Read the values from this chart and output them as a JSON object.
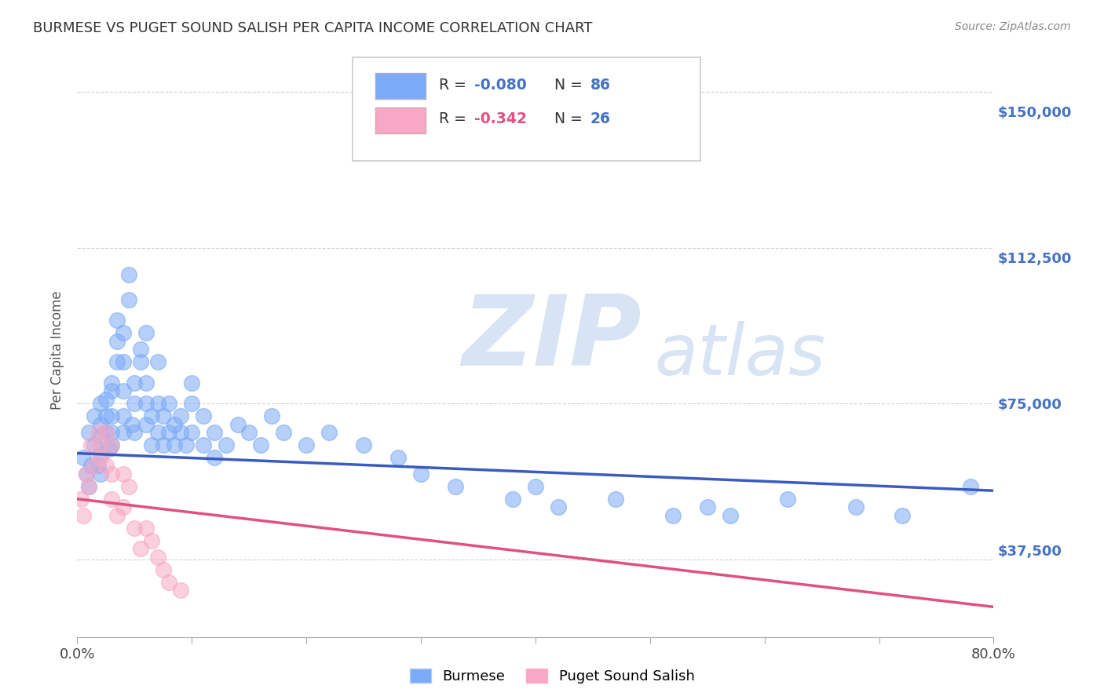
{
  "title": "BURMESE VS PUGET SOUND SALISH PER CAPITA INCOME CORRELATION CHART",
  "source": "Source: ZipAtlas.com",
  "ylabel": "Per Capita Income",
  "xlim": [
    0.0,
    0.8
  ],
  "ylim": [
    18750,
    157000
  ],
  "yticks": [
    37500,
    75000,
    112500,
    150000
  ],
  "ytick_labels": [
    "$37,500",
    "$75,000",
    "$112,500",
    "$150,000"
  ],
  "xticks": [
    0.0,
    0.1,
    0.2,
    0.3,
    0.4,
    0.5,
    0.6,
    0.7,
    0.8
  ],
  "background_color": "#ffffff",
  "grid_color": "#cccccc",
  "blue_color": "#7baaf7",
  "pink_color": "#f7a8c4",
  "blue_line_color": "#3a5bbf",
  "pink_line_color": "#e05080",
  "blue_label_color": "#4472c4",
  "pink_label_color": "#e05080",
  "text_color": "#444444",
  "R_blue": -0.08,
  "N_blue": 86,
  "R_pink": -0.342,
  "N_pink": 26,
  "blue_scatter_x": [
    0.005,
    0.008,
    0.01,
    0.01,
    0.012,
    0.015,
    0.015,
    0.018,
    0.02,
    0.02,
    0.02,
    0.02,
    0.02,
    0.025,
    0.025,
    0.025,
    0.028,
    0.03,
    0.03,
    0.03,
    0.03,
    0.03,
    0.035,
    0.035,
    0.035,
    0.04,
    0.04,
    0.04,
    0.04,
    0.04,
    0.045,
    0.045,
    0.048,
    0.05,
    0.05,
    0.05,
    0.055,
    0.055,
    0.06,
    0.06,
    0.06,
    0.06,
    0.065,
    0.065,
    0.07,
    0.07,
    0.07,
    0.075,
    0.075,
    0.08,
    0.08,
    0.085,
    0.085,
    0.09,
    0.09,
    0.095,
    0.1,
    0.1,
    0.1,
    0.11,
    0.11,
    0.12,
    0.12,
    0.13,
    0.14,
    0.15,
    0.16,
    0.17,
    0.18,
    0.2,
    0.22,
    0.25,
    0.28,
    0.3,
    0.33,
    0.38,
    0.4,
    0.42,
    0.47,
    0.52,
    0.55,
    0.57,
    0.62,
    0.68,
    0.72,
    0.78
  ],
  "blue_scatter_y": [
    62000,
    58000,
    55000,
    68000,
    60000,
    65000,
    72000,
    60000,
    63000,
    67000,
    70000,
    75000,
    58000,
    68000,
    72000,
    76000,
    64000,
    68000,
    72000,
    78000,
    65000,
    80000,
    85000,
    90000,
    95000,
    68000,
    72000,
    78000,
    85000,
    92000,
    100000,
    106000,
    70000,
    75000,
    80000,
    68000,
    85000,
    88000,
    75000,
    70000,
    80000,
    92000,
    65000,
    72000,
    68000,
    75000,
    85000,
    65000,
    72000,
    68000,
    75000,
    70000,
    65000,
    68000,
    72000,
    65000,
    75000,
    68000,
    80000,
    72000,
    65000,
    68000,
    62000,
    65000,
    70000,
    68000,
    65000,
    72000,
    68000,
    65000,
    68000,
    65000,
    62000,
    58000,
    55000,
    52000,
    55000,
    50000,
    52000,
    48000,
    50000,
    48000,
    52000,
    50000,
    48000,
    55000
  ],
  "pink_scatter_x": [
    0.003,
    0.005,
    0.008,
    0.01,
    0.012,
    0.015,
    0.018,
    0.02,
    0.02,
    0.025,
    0.025,
    0.03,
    0.03,
    0.03,
    0.035,
    0.04,
    0.04,
    0.045,
    0.05,
    0.055,
    0.06,
    0.065,
    0.07,
    0.075,
    0.08,
    0.09
  ],
  "pink_scatter_y": [
    52000,
    48000,
    58000,
    55000,
    65000,
    60000,
    68000,
    65000,
    62000,
    68000,
    60000,
    65000,
    58000,
    52000,
    48000,
    58000,
    50000,
    55000,
    45000,
    40000,
    45000,
    42000,
    38000,
    35000,
    32000,
    30000
  ],
  "blue_trend_x": [
    0.0,
    0.8
  ],
  "blue_trend_y": [
    63000,
    54000
  ],
  "pink_trend_x": [
    0.0,
    0.8
  ],
  "pink_trend_y": [
    52000,
    26000
  ],
  "watermark_zip": "ZIP",
  "watermark_atlas": "atlas",
  "watermark_color": "#c8d8f0",
  "watermark_alpha": 0.6
}
